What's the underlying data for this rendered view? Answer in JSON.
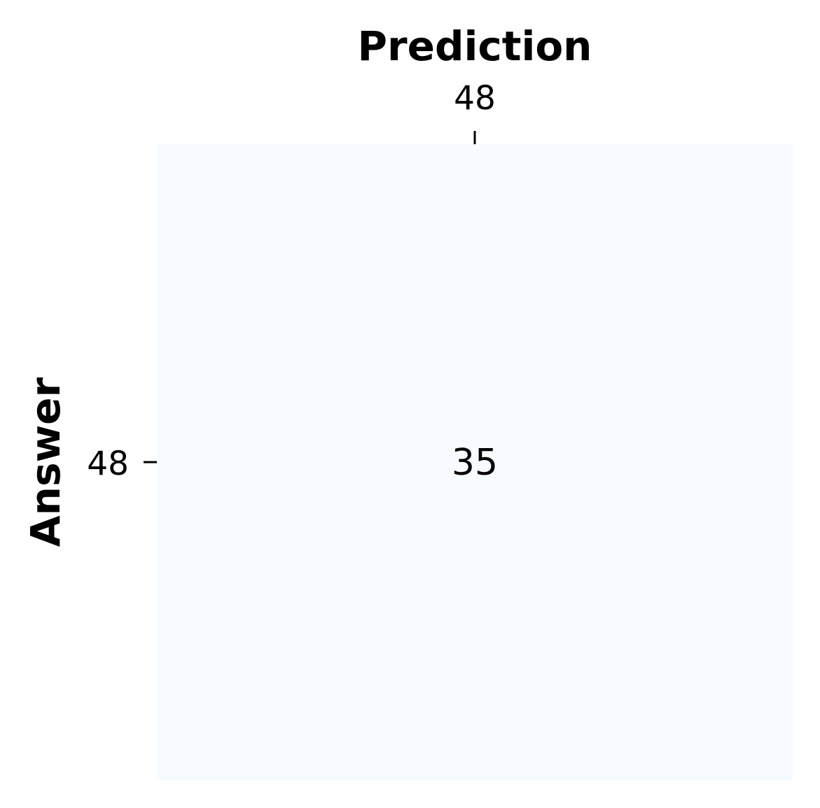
{
  "chart_data": {
    "type": "heatmap",
    "title": "",
    "xlabel": "Prediction",
    "ylabel": "Answer",
    "x_categories": [
      "48"
    ],
    "y_categories": [
      "48"
    ],
    "values": [
      [
        35
      ]
    ],
    "x_axis_position": "top",
    "colormap": "Blues",
    "cell_color": "#f7fbff",
    "grid": false,
    "colorbar": false
  }
}
